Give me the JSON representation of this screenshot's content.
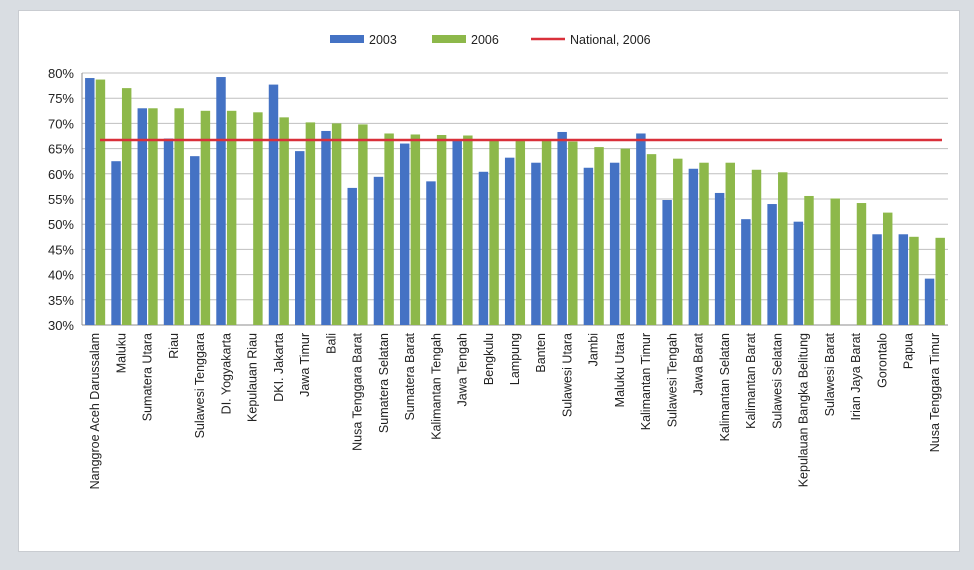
{
  "colors": {
    "s2003": "#4472c4",
    "s2006": "#8db84a",
    "national": "#d9303a",
    "grid": "#bfbfbf"
  },
  "chart_data": {
    "type": "bar",
    "title": "",
    "xlabel": "",
    "ylabel": "",
    "ylim": [
      30,
      80
    ],
    "yticks": [
      "30%",
      "35%",
      "40%",
      "45%",
      "50%",
      "55%",
      "60%",
      "65%",
      "70%",
      "75%",
      "80%"
    ],
    "grid": true,
    "legend_position": "top",
    "legend": [
      "2003",
      "2006",
      "National, 2006"
    ],
    "categories": [
      "Nanggroe Aceh Darussalam",
      "Maluku",
      "Sumatera Utara",
      "Riau",
      "Sulawesi Tenggara",
      "DI. Yogyakarta",
      "Kepulauan Riau",
      "DKI. Jakarta",
      "Jawa Timur",
      "Bali",
      "Nusa Tenggara Barat",
      "Sumatera Selatan",
      "Sumatera Barat",
      "Kalimantan Tengah",
      "Jawa Tengah",
      "Bengkulu",
      "Lampung",
      "Banten",
      "Sulawesi Utara",
      "Jambi",
      "Maluku Utara",
      "Kalimantan Timur",
      "Sulawesi Tengah",
      "Jawa Barat",
      "Kalimantan Selatan",
      "Kalimantan Barat",
      "Sulawesi Selatan",
      "Kepulauan Bangka Belitung",
      "Sulawesi Barat",
      "Irian Jaya Barat",
      "Gorontalo",
      "Papua",
      "Nusa Tenggara Timur"
    ],
    "series": [
      {
        "name": "2003",
        "values": [
          79,
          62.5,
          73,
          67,
          63.5,
          79.2,
          null,
          77.7,
          64.5,
          68.5,
          57.2,
          59.4,
          66,
          58.5,
          66.8,
          60.4,
          63.2,
          62.2,
          68.3,
          61.2,
          62.2,
          68,
          54.8,
          61,
          56.2,
          51,
          54,
          50.5,
          null,
          null,
          48,
          48,
          39.2
        ]
      },
      {
        "name": "2006",
        "values": [
          78.7,
          77,
          73,
          73,
          72.5,
          72.5,
          72.2,
          71.2,
          70.2,
          70,
          69.8,
          68,
          67.8,
          67.7,
          67.6,
          66.7,
          66.5,
          66.5,
          66.4,
          65.3,
          65,
          63.9,
          63,
          62.2,
          62.2,
          60.8,
          60.3,
          55.6,
          55.1,
          54.2,
          52.3,
          47.5,
          47.3
        ]
      }
    ],
    "reference_lines": [
      {
        "name": "National, 2006",
        "value": 66.7
      }
    ]
  }
}
